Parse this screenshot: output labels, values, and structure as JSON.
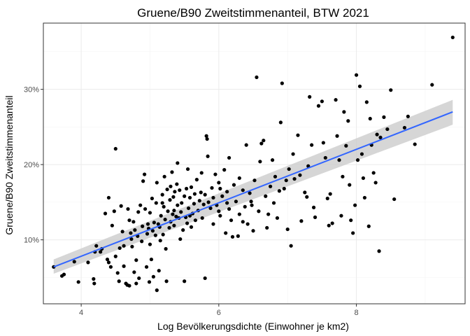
{
  "chart_data": {
    "type": "scatter",
    "title": "Gruene/B90 Zweitstimmenanteil, BTW 2021",
    "xlabel": "Log Bevölkerungsdichte (Einwohner je km2)",
    "ylabel": "Gruene/B90 Zweitstimmenanteil",
    "xlim": [
      3.45,
      9.58
    ],
    "ylim": [
      1.5,
      38.8
    ],
    "x_ticks": [
      4,
      6,
      8
    ],
    "x_tick_labels": [
      "4",
      "6",
      "8"
    ],
    "y_ticks": [
      10,
      20,
      30
    ],
    "y_tick_labels": [
      "10%",
      "20%",
      "30%"
    ],
    "grid": true,
    "legend": "none",
    "colors": {
      "points": "#000000",
      "fit_line": "#3366FF",
      "ci_band": "#cccccc"
    },
    "fit": {
      "method": "linear",
      "x_start": 3.6,
      "y_start": 6.4,
      "x_end": 9.4,
      "y_end": 27.0,
      "ci_start": [
        5.5,
        7.4
      ],
      "ci_end": [
        25.3,
        28.6
      ]
    },
    "points": [
      [
        3.6,
        6.4
      ],
      [
        3.72,
        5.2
      ],
      [
        3.75,
        5.4
      ],
      [
        3.9,
        7.1
      ],
      [
        3.96,
        4.4
      ],
      [
        4.1,
        7.0
      ],
      [
        4.18,
        4.8
      ],
      [
        4.19,
        4.2
      ],
      [
        4.2,
        8.4
      ],
      [
        4.22,
        9.2
      ],
      [
        4.28,
        8.4
      ],
      [
        4.3,
        8.8
      ],
      [
        4.35,
        13.5
      ],
      [
        4.38,
        7.4
      ],
      [
        4.4,
        15.6
      ],
      [
        4.4,
        7.0
      ],
      [
        4.43,
        6.4
      ],
      [
        4.45,
        11.9
      ],
      [
        4.48,
        13.8
      ],
      [
        4.5,
        22.1
      ],
      [
        4.5,
        7.8
      ],
      [
        4.53,
        5.6
      ],
      [
        4.55,
        4.5
      ],
      [
        4.56,
        8.9
      ],
      [
        4.58,
        14.5
      ],
      [
        4.6,
        11.1
      ],
      [
        4.62,
        9.2
      ],
      [
        4.62,
        6.5
      ],
      [
        4.65,
        4.2
      ],
      [
        4.67,
        4.0
      ],
      [
        4.68,
        14.1
      ],
      [
        4.7,
        3.9
      ],
      [
        4.7,
        12.6
      ],
      [
        4.72,
        10.9
      ],
      [
        4.73,
        10.1
      ],
      [
        4.74,
        9.1
      ],
      [
        4.76,
        12.4
      ],
      [
        4.77,
        5.7
      ],
      [
        4.78,
        11.3
      ],
      [
        4.8,
        4.2
      ],
      [
        4.8,
        7.3
      ],
      [
        4.82,
        10.5
      ],
      [
        4.83,
        13.7
      ],
      [
        4.84,
        4.9
      ],
      [
        4.86,
        14.6
      ],
      [
        4.88,
        9.8
      ],
      [
        4.89,
        11.8
      ],
      [
        4.9,
        17.8
      ],
      [
        4.92,
        18.7
      ],
      [
        4.93,
        14.1
      ],
      [
        4.95,
        6.4
      ],
      [
        4.96,
        10.8
      ],
      [
        4.97,
        12.1
      ],
      [
        4.98,
        11.5
      ],
      [
        4.99,
        4.4
      ],
      [
        5.0,
        13.6
      ],
      [
        5.0,
        9.4
      ],
      [
        5.02,
        7.4
      ],
      [
        5.03,
        15.5
      ],
      [
        5.04,
        11.2
      ],
      [
        5.05,
        5.1
      ],
      [
        5.06,
        12.3
      ],
      [
        5.08,
        10.6
      ],
      [
        5.09,
        14.9
      ],
      [
        5.1,
        17.6
      ],
      [
        5.1,
        3.3
      ],
      [
        5.12,
        12.1
      ],
      [
        5.13,
        5.9
      ],
      [
        5.14,
        11.7
      ],
      [
        5.15,
        9.9
      ],
      [
        5.16,
        13.2
      ],
      [
        5.18,
        16.0
      ],
      [
        5.19,
        10.7
      ],
      [
        5.2,
        14.4
      ],
      [
        5.21,
        18.4
      ],
      [
        5.22,
        12.7
      ],
      [
        5.23,
        8.8
      ],
      [
        5.24,
        4.5
      ],
      [
        5.25,
        16.7
      ],
      [
        5.26,
        13.8
      ],
      [
        5.28,
        11.6
      ],
      [
        5.29,
        15.3
      ],
      [
        5.3,
        17.1
      ],
      [
        5.3,
        12.4
      ],
      [
        5.32,
        19.0
      ],
      [
        5.33,
        13.4
      ],
      [
        5.34,
        15.7
      ],
      [
        5.35,
        11.9
      ],
      [
        5.36,
        16.4
      ],
      [
        5.38,
        13.1
      ],
      [
        5.39,
        17.4
      ],
      [
        5.4,
        14.6
      ],
      [
        5.4,
        20.2
      ],
      [
        5.42,
        12.9
      ],
      [
        5.43,
        16.6
      ],
      [
        5.44,
        10.1
      ],
      [
        5.45,
        13.7
      ],
      [
        5.46,
        14.9
      ],
      [
        5.48,
        11.3
      ],
      [
        5.5,
        4.5
      ],
      [
        5.5,
        15.8
      ],
      [
        5.52,
        13.0
      ],
      [
        5.53,
        16.8
      ],
      [
        5.54,
        12.2
      ],
      [
        5.55,
        19.4
      ],
      [
        5.56,
        14.2
      ],
      [
        5.58,
        15.6
      ],
      [
        5.6,
        17.0
      ],
      [
        5.6,
        11.7
      ],
      [
        5.62,
        13.5
      ],
      [
        5.64,
        14.8
      ],
      [
        5.65,
        16.1
      ],
      [
        5.66,
        12.6
      ],
      [
        5.68,
        18.0
      ],
      [
        5.7,
        13.9
      ],
      [
        5.72,
        15.2
      ],
      [
        5.74,
        16.3
      ],
      [
        5.76,
        12.9
      ],
      [
        5.78,
        14.7
      ],
      [
        5.8,
        4.9
      ],
      [
        5.8,
        16.0
      ],
      [
        5.82,
        23.8
      ],
      [
        5.83,
        23.4
      ],
      [
        5.84,
        21.1
      ],
      [
        5.85,
        15.0
      ],
      [
        5.88,
        14.2
      ],
      [
        5.9,
        16.9
      ],
      [
        5.92,
        12.1
      ],
      [
        5.95,
        18.7
      ],
      [
        5.97,
        14.6
      ],
      [
        6.0,
        17.6
      ],
      [
        6.02,
        13.2
      ],
      [
        6.05,
        15.8
      ],
      [
        6.08,
        19.3
      ],
      [
        6.1,
        10.9
      ],
      [
        6.12,
        16.4
      ],
      [
        6.15,
        14.1
      ],
      [
        6.15,
        20.9
      ],
      [
        6.18,
        12.6
      ],
      [
        6.2,
        10.4
      ],
      [
        6.22,
        17.3
      ],
      [
        6.25,
        15.1
      ],
      [
        6.28,
        10.5
      ],
      [
        6.3,
        18.2
      ],
      [
        6.3,
        13.4
      ],
      [
        6.35,
        16.6
      ],
      [
        6.38,
        14.4
      ],
      [
        6.4,
        22.6
      ],
      [
        6.42,
        12.1
      ],
      [
        6.45,
        16.2
      ],
      [
        6.47,
        15.1
      ],
      [
        6.5,
        11.2
      ],
      [
        6.52,
        17.9
      ],
      [
        6.55,
        31.6
      ],
      [
        6.58,
        13.8
      ],
      [
        6.6,
        20.4
      ],
      [
        6.62,
        22.8
      ],
      [
        6.65,
        23.2
      ],
      [
        6.68,
        15.8
      ],
      [
        6.7,
        11.6
      ],
      [
        6.72,
        13.4
      ],
      [
        6.75,
        17.1
      ],
      [
        6.78,
        20.6
      ],
      [
        6.8,
        14.9
      ],
      [
        6.82,
        18.4
      ],
      [
        6.85,
        12.9
      ],
      [
        6.88,
        16.5
      ],
      [
        6.9,
        25.6
      ],
      [
        6.92,
        30.8
      ],
      [
        6.95,
        16.8
      ],
      [
        6.98,
        17.9
      ],
      [
        7.0,
        11.4
      ],
      [
        7.02,
        19.4
      ],
      [
        7.05,
        9.2
      ],
      [
        7.08,
        21.4
      ],
      [
        7.1,
        18.1
      ],
      [
        7.15,
        23.9
      ],
      [
        7.18,
        18.6
      ],
      [
        7.2,
        12.5
      ],
      [
        7.25,
        16.3
      ],
      [
        7.28,
        15.7
      ],
      [
        7.3,
        19.8
      ],
      [
        7.32,
        29.0
      ],
      [
        7.35,
        22.6
      ],
      [
        7.38,
        14.3
      ],
      [
        7.4,
        13.0
      ],
      [
        7.45,
        27.8
      ],
      [
        7.5,
        28.4
      ],
      [
        7.52,
        22.9
      ],
      [
        7.55,
        20.9
      ],
      [
        7.58,
        15.5
      ],
      [
        7.6,
        11.9
      ],
      [
        7.62,
        16.1
      ],
      [
        7.65,
        12.2
      ],
      [
        7.7,
        28.6
      ],
      [
        7.72,
        23.8
      ],
      [
        7.75,
        20.6
      ],
      [
        7.78,
        13.2
      ],
      [
        7.8,
        18.4
      ],
      [
        7.82,
        27.0
      ],
      [
        7.85,
        22.5
      ],
      [
        7.88,
        25.8
      ],
      [
        7.9,
        17.3
      ],
      [
        7.92,
        12.6
      ],
      [
        7.95,
        10.9
      ],
      [
        7.98,
        14.6
      ],
      [
        8.0,
        31.9
      ],
      [
        8.02,
        20.6
      ],
      [
        8.05,
        30.4
      ],
      [
        8.08,
        21.4
      ],
      [
        8.1,
        18.2
      ],
      [
        8.12,
        15.6
      ],
      [
        8.15,
        28.3
      ],
      [
        8.18,
        11.8
      ],
      [
        8.2,
        26.1
      ],
      [
        8.22,
        22.6
      ],
      [
        8.25,
        18.9
      ],
      [
        8.28,
        17.6
      ],
      [
        8.3,
        24.0
      ],
      [
        8.33,
        8.5
      ],
      [
        8.35,
        23.6
      ],
      [
        8.4,
        26.3
      ],
      [
        8.45,
        24.7
      ],
      [
        8.5,
        29.9
      ],
      [
        8.55,
        15.4
      ],
      [
        8.7,
        24.9
      ],
      [
        8.75,
        26.4
      ],
      [
        8.85,
        22.7
      ],
      [
        9.1,
        30.6
      ],
      [
        9.4,
        36.9
      ],
      [
        6.0,
        13.8
      ],
      [
        5.75,
        18.9
      ],
      [
        5.58,
        13.2
      ],
      [
        5.35,
        13.9
      ],
      [
        5.18,
        14.9
      ],
      [
        5.92,
        15.6
      ],
      [
        6.12,
        14.9
      ],
      [
        6.35,
        12.4
      ],
      [
        6.48,
        14.6
      ],
      [
        6.02,
        16.8
      ]
    ]
  }
}
